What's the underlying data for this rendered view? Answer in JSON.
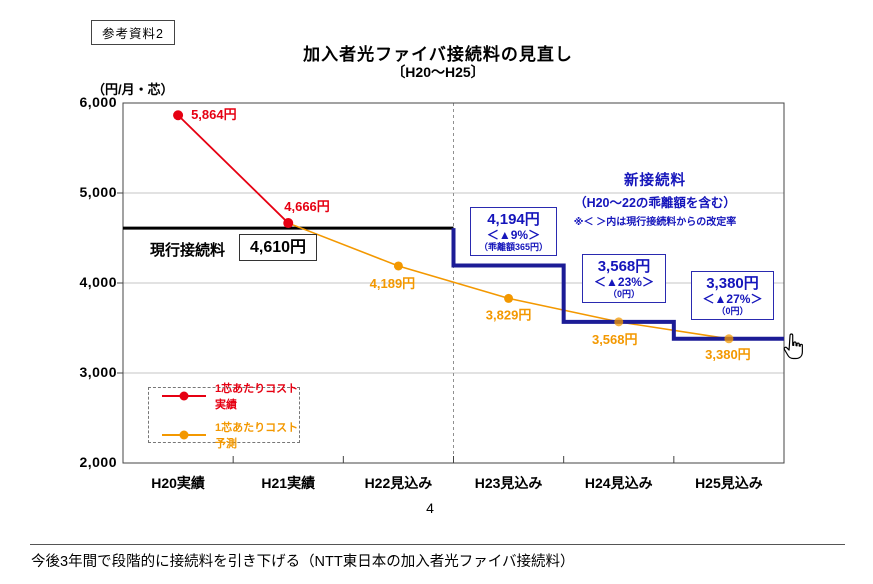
{
  "page": {
    "ref_label": "参考資料2",
    "title": "加入者光ファイバ接続料の見直し",
    "subtitle": "〔H20～H25〕",
    "page_number": "4",
    "caption": "今後3年間で段階的に接続料を引き下げる（NTT東日本の加入者光ファイバ接続料）"
  },
  "chart_data": {
    "type": "line",
    "title": "加入者光ファイバ接続料の見直し〔H20～H25〕",
    "unit_label": "（円/月・芯）",
    "ylim": [
      2000,
      6000
    ],
    "yticks": [
      {
        "value": 6000,
        "label": "6,000"
      },
      {
        "value": 5000,
        "label": "5,000"
      },
      {
        "value": 4000,
        "label": "4,000"
      },
      {
        "value": 3000,
        "label": "3,000"
      },
      {
        "value": 2000,
        "label": "2,000"
      }
    ],
    "grid_values": [
      5000,
      4000,
      3000
    ],
    "categories": [
      "H20実績",
      "H21実績",
      "H22見込み",
      "H23見込み",
      "H24見込み",
      "H25見込み"
    ],
    "dashed_divider_after_category": 3,
    "series": [
      {
        "name": "1芯あたりコスト実績",
        "color": "#e60012",
        "points": [
          {
            "category": "H20実績",
            "value": 5864,
            "label": "5,864円"
          },
          {
            "category": "H21実績",
            "value": 4666,
            "label": "4,666円"
          }
        ]
      },
      {
        "name": "1芯あたりコスト予測",
        "color": "#f39800",
        "points": [
          {
            "category": "H21実績",
            "value": 4666,
            "label": ""
          },
          {
            "category": "H22見込み",
            "value": 4189,
            "label": "4,189円"
          },
          {
            "category": "H23見込み",
            "value": 3829,
            "label": "3,829円"
          },
          {
            "category": "H24見込み",
            "value": 3568,
            "label": "3,568円"
          },
          {
            "category": "H25見込み",
            "value": 3380,
            "label": "3,380円"
          }
        ]
      }
    ],
    "current_fee": {
      "label": "現行接続料",
      "value": 4610,
      "value_label": "4,610円",
      "color": "#000000"
    },
    "new_fee": {
      "title": "新接続料",
      "subtitle": "（H20～22の乖離額を含む）",
      "note": "※＜ ＞内は現行接続料からの改定率",
      "color": "#1c1c96",
      "text_color": "#1515bb",
      "steps": [
        {
          "value": 4194,
          "price": "4,194円",
          "rate": "＜▲9%＞",
          "note": "（乖離額365円）"
        },
        {
          "value": 3568,
          "price": "3,568円",
          "rate": "＜▲23%＞",
          "note": "（0円）"
        },
        {
          "value": 3380,
          "price": "3,380円",
          "rate": "＜▲27%＞",
          "note": "（0円）"
        }
      ]
    },
    "legend_position": "lower-left",
    "grid": true
  }
}
